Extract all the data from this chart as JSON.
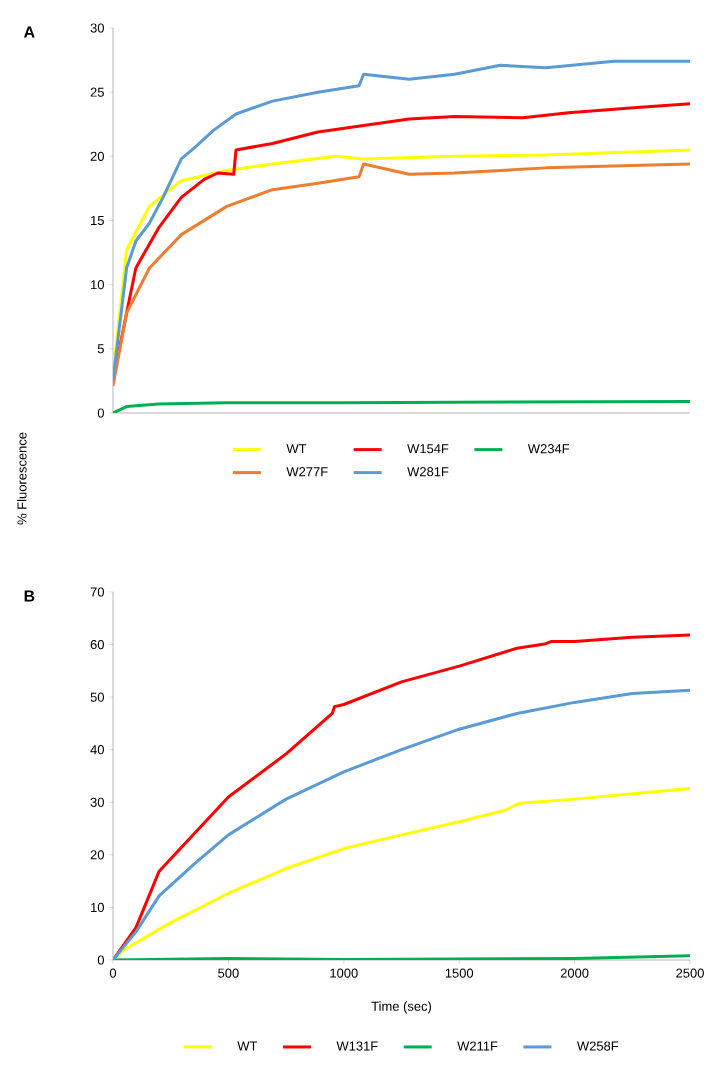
{
  "chart_data": [
    {
      "type": "line",
      "title": "A",
      "ylabel": "% Fluorescence",
      "xlim": [
        0,
        2500
      ],
      "ylim": [
        0,
        30
      ],
      "yticks": [
        0,
        5,
        10,
        15,
        20,
        25,
        30
      ],
      "tick_labels": "y",
      "legend": "bottom",
      "series": [
        {
          "name": "WT",
          "color": "#ffff00",
          "x": [
            0,
            59,
            158,
            296,
            493,
            691,
            967,
            1086,
            1480,
            1875,
            2500
          ],
          "values": [
            3,
            12.7,
            16.1,
            18.1,
            18.9,
            19.4,
            20,
            19.8,
            20,
            20.1,
            20.5
          ]
        },
        {
          "name": "W154F",
          "color": "#ff0000",
          "x": [
            0,
            59,
            99,
            197,
            296,
            395,
            454,
            523,
            533,
            691,
            888,
            1086,
            1283,
            1480,
            1776,
            1974,
            2270,
            2500
          ],
          "values": [
            2.5,
            7.8,
            11.3,
            14.4,
            16.8,
            18.2,
            18.7,
            18.6,
            20.5,
            21,
            21.9,
            22.4,
            22.9,
            23.1,
            23,
            23.4,
            23.8,
            24.1
          ]
        },
        {
          "name": "W234F",
          "color": "#00b050",
          "x": [
            0,
            59,
            197,
            493,
            1000,
            2500
          ],
          "values": [
            0,
            0.5,
            0.7,
            0.8,
            0.8,
            0.9
          ]
        },
        {
          "name": "W277F",
          "color": "#ed7d31",
          "x": [
            0,
            59,
            158,
            296,
            493,
            691,
            888,
            1066,
            1086,
            1283,
            1480,
            1875,
            2500
          ],
          "values": [
            2.1,
            7.8,
            11.3,
            13.9,
            16.1,
            17.4,
            17.9,
            18.4,
            19.4,
            18.6,
            18.7,
            19.1,
            19.4
          ]
        },
        {
          "name": "W281F",
          "color": "#5b9bd5",
          "x": [
            0,
            59,
            99,
            158,
            217,
            296,
            355,
            434,
            533,
            691,
            888,
            1066,
            1086,
            1283,
            1480,
            1678,
            1875,
            2171,
            2500
          ],
          "values": [
            2.6,
            11.3,
            13.4,
            14.8,
            16.8,
            19.8,
            20.7,
            22,
            23.3,
            24.3,
            25,
            25.5,
            26.4,
            26,
            26.4,
            27.1,
            26.9,
            27.4,
            27.4
          ]
        }
      ]
    },
    {
      "type": "line",
      "title": "B",
      "xlabel": "Time (sec)",
      "xlim": [
        0,
        2500
      ],
      "ylim": [
        0,
        70
      ],
      "xticks": [
        0,
        500,
        1000,
        1500,
        2000,
        2500
      ],
      "yticks": [
        0,
        10,
        20,
        30,
        40,
        50,
        60,
        70
      ],
      "legend": "bottom",
      "series": [
        {
          "name": "WT",
          "color": "#ffff00",
          "x": [
            0,
            50,
            250,
            500,
            750,
            1000,
            1250,
            1500,
            1700,
            1760,
            2000,
            2250,
            2500
          ],
          "values": [
            0,
            2,
            7.1,
            12.7,
            17.4,
            21.2,
            23.8,
            26.3,
            28.5,
            29.8,
            30.6,
            31.6,
            32.6
          ]
        },
        {
          "name": "W131F",
          "color": "#ff0000",
          "x": [
            0,
            100,
            200,
            500,
            750,
            950,
            960,
            1000,
            1250,
            1500,
            1750,
            1870,
            1900,
            2000,
            2250,
            2500
          ],
          "values": [
            0,
            6.2,
            16.9,
            31,
            39.2,
            46.9,
            48.2,
            48.6,
            52.9,
            55.9,
            59.3,
            60.1,
            60.6,
            60.6,
            61.4,
            61.8
          ]
        },
        {
          "name": "W211F",
          "color": "#00b050",
          "x": [
            0,
            500,
            1000,
            2000,
            2500
          ],
          "values": [
            0,
            0.3,
            0.1,
            0.3,
            0.8
          ]
        },
        {
          "name": "W258F",
          "color": "#5b9bd5",
          "x": [
            0,
            100,
            200,
            350,
            500,
            750,
            1000,
            1250,
            1500,
            1750,
            2000,
            2250,
            2500
          ],
          "values": [
            0,
            5.4,
            12.2,
            18.2,
            23.8,
            30.6,
            35.8,
            40,
            43.9,
            46.9,
            49,
            50.7,
            51.3
          ]
        }
      ]
    }
  ]
}
